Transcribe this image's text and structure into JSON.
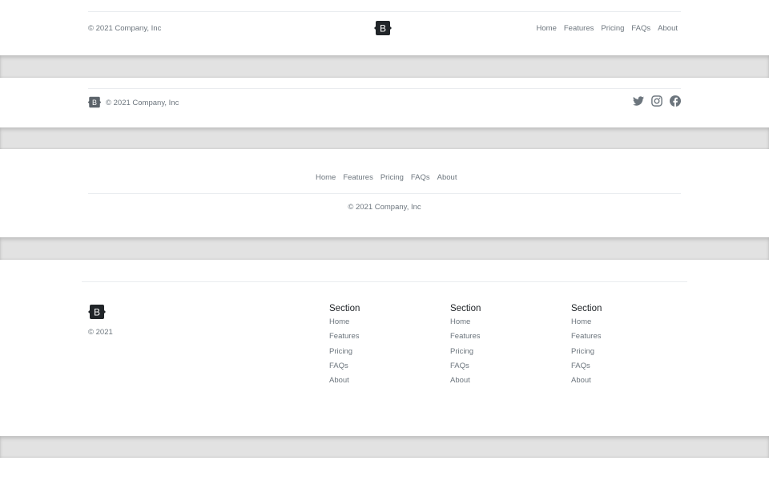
{
  "footer1": {
    "copyright": "© 2021 Company, Inc",
    "logo_letter": "B",
    "nav": [
      "Home",
      "Features",
      "Pricing",
      "FAQs",
      "About"
    ]
  },
  "footer2": {
    "copyright": "© 2021 Company, Inc",
    "logo_letter": "B",
    "social": [
      "twitter-icon",
      "instagram-icon",
      "facebook-icon"
    ]
  },
  "footer3": {
    "nav": [
      "Home",
      "Features",
      "Pricing",
      "FAQs",
      "About"
    ],
    "copyright": "© 2021 Company, Inc"
  },
  "footer4": {
    "logo_letter": "B",
    "copyright": "© 2021",
    "sections": [
      {
        "title": "Section",
        "links": [
          "Home",
          "Features",
          "Pricing",
          "FAQs",
          "About"
        ]
      },
      {
        "title": "Section",
        "links": [
          "Home",
          "Features",
          "Pricing",
          "FAQs",
          "About"
        ]
      },
      {
        "title": "Section",
        "links": [
          "Home",
          "Features",
          "Pricing",
          "FAQs",
          "About"
        ]
      }
    ]
  },
  "colors": {
    "text_muted": "#6c757d",
    "logo_dark": "#212529",
    "logo_gray": "#5c636a",
    "divider_band": "#e2e2e2"
  }
}
